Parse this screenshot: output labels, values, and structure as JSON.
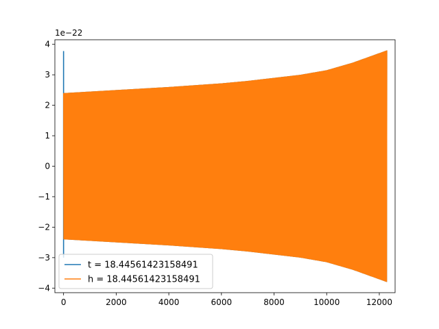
{
  "chart_data": {
    "type": "line",
    "title": "",
    "xlabel": "",
    "ylabel": "",
    "y_scale_label": "1e−22",
    "xlim": [
      -330,
      12600
    ],
    "ylim": [
      -4.15,
      4.15
    ],
    "x_ticks": [
      0,
      2000,
      4000,
      6000,
      8000,
      10000,
      12000
    ],
    "x_tick_labels": [
      "0",
      "2000",
      "4000",
      "6000",
      "8000",
      "10000",
      "12000"
    ],
    "y_ticks": [
      -4,
      -3,
      -2,
      -1,
      0,
      1,
      2,
      3,
      4
    ],
    "y_tick_labels": [
      "−4",
      "−3",
      "−2",
      "−1",
      "0",
      "1",
      "2",
      "3",
      "4"
    ],
    "grid": false,
    "legend_position": "lower-left",
    "series": [
      {
        "name": "t = 18.44561423158491",
        "color": "#1f77b4",
        "x_range": [
          0,
          12288
        ],
        "spike": {
          "x": 0,
          "max": 3.78,
          "min": -3.0
        },
        "envelope": {
          "x": [
            0,
            1000,
            2000,
            3000,
            4000,
            5000,
            6000,
            7000,
            8000,
            9000,
            10000,
            11000,
            12288
          ],
          "amplitude": [
            2.4,
            2.45,
            2.5,
            2.55,
            2.6,
            2.66,
            2.72,
            2.8,
            2.9,
            3.0,
            3.15,
            3.4,
            3.8
          ]
        }
      },
      {
        "name": "h = 18.44561423158491",
        "color": "#ff7f0e",
        "x_range": [
          0,
          12288
        ],
        "envelope": {
          "x": [
            0,
            1000,
            2000,
            3000,
            4000,
            5000,
            6000,
            7000,
            8000,
            9000,
            10000,
            11000,
            12288
          ],
          "amplitude": [
            2.4,
            2.45,
            2.5,
            2.55,
            2.6,
            2.66,
            2.72,
            2.8,
            2.9,
            3.0,
            3.15,
            3.4,
            3.8
          ]
        }
      }
    ]
  }
}
